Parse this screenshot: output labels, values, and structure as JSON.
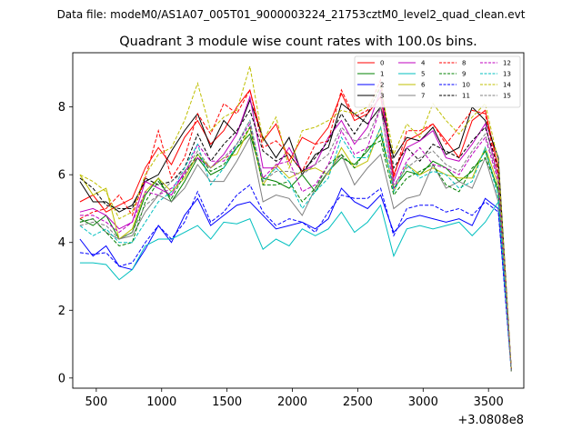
{
  "header": {
    "suptitle": "Data file: modeM0/AS1A07_005T01_9000003224_21753cztM0_level2_quad_clean.evt",
    "title": "Quadrant 3 module wise count rates with 100.0s bins."
  },
  "chart_data": {
    "type": "line",
    "title": "Quadrant 3 module wise count rates with 100.0s bins.",
    "xlabel": "",
    "ylabel": "",
    "x_offset_label": "+3.0808e8",
    "xlim": [
      320,
      3770
    ],
    "ylim": [
      -0.3,
      9.6
    ],
    "xticks": [
      500,
      1000,
      1500,
      2000,
      2500,
      3000,
      3500
    ],
    "yticks": [
      0,
      2,
      4,
      6,
      8
    ],
    "grid": false,
    "legend_position": "top-right",
    "x": [
      375,
      475,
      575,
      675,
      775,
      875,
      975,
      1075,
      1175,
      1275,
      1375,
      1475,
      1575,
      1675,
      1775,
      1875,
      1975,
      2075,
      2175,
      2275,
      2375,
      2475,
      2575,
      2675,
      2775,
      2875,
      2975,
      3075,
      3175,
      3275,
      3375,
      3475,
      3575,
      3675
    ],
    "series": [
      {
        "name": "0",
        "color": "#ff0000",
        "dash": "solid",
        "values": [
          5.2,
          5.4,
          4.9,
          5.1,
          5.3,
          6.2,
          6.8,
          6.3,
          7.1,
          7.6,
          6.9,
          7.3,
          8.0,
          8.5,
          7.0,
          7.5,
          6.4,
          7.1,
          6.9,
          7.4,
          8.4,
          7.6,
          7.8,
          8.3,
          6.0,
          7.0,
          7.2,
          7.5,
          7.0,
          6.5,
          7.6,
          7.9,
          6.2,
          0.2
        ]
      },
      {
        "name": "1",
        "color": "#008000",
        "dash": "solid",
        "values": [
          4.7,
          4.5,
          4.8,
          4.1,
          4.3,
          5.4,
          5.9,
          5.2,
          5.8,
          6.5,
          6.0,
          6.2,
          6.8,
          7.2,
          5.9,
          5.8,
          5.6,
          6.0,
          5.5,
          6.1,
          6.5,
          6.3,
          6.7,
          7.2,
          5.6,
          6.1,
          6.0,
          6.4,
          6.2,
          5.8,
          6.1,
          6.7,
          5.5,
          0.2
        ]
      },
      {
        "name": "2",
        "color": "#0000ff",
        "dash": "solid",
        "values": [
          4.1,
          3.6,
          3.9,
          3.3,
          3.2,
          3.8,
          4.5,
          4.0,
          4.8,
          5.3,
          4.5,
          4.8,
          5.1,
          5.2,
          4.8,
          4.4,
          4.5,
          4.6,
          4.4,
          4.7,
          5.6,
          5.2,
          5.0,
          5.4,
          4.3,
          4.7,
          4.8,
          4.7,
          4.6,
          4.7,
          4.5,
          5.3,
          5.0,
          0.2
        ]
      },
      {
        "name": "3",
        "color": "#000000",
        "dash": "solid",
        "values": [
          5.8,
          5.2,
          5.2,
          4.9,
          5.1,
          5.8,
          6.0,
          6.7,
          7.3,
          7.8,
          6.8,
          7.6,
          7.2,
          8.2,
          7.1,
          6.5,
          7.1,
          6.0,
          6.6,
          6.8,
          8.1,
          7.8,
          7.5,
          8.0,
          6.5,
          7.1,
          7.0,
          7.4,
          6.6,
          6.8,
          8.0,
          7.6,
          6.5,
          0.2
        ]
      },
      {
        "name": "4",
        "color": "#bf00bf",
        "dash": "solid",
        "values": [
          4.9,
          5.0,
          4.8,
          4.4,
          4.6,
          5.8,
          5.6,
          5.4,
          6.1,
          6.5,
          6.2,
          6.6,
          7.2,
          8.3,
          6.2,
          6.2,
          6.8,
          6.1,
          6.3,
          7.1,
          7.6,
          6.9,
          7.4,
          8.5,
          5.8,
          6.8,
          7.0,
          7.3,
          6.5,
          6.4,
          6.9,
          7.5,
          5.9,
          0.2
        ]
      },
      {
        "name": "5",
        "color": "#00bfbf",
        "dash": "solid",
        "values": [
          3.4,
          3.4,
          3.35,
          2.9,
          3.2,
          3.9,
          4.1,
          4.1,
          4.3,
          4.5,
          4.1,
          4.6,
          4.55,
          4.7,
          3.8,
          4.1,
          3.9,
          4.4,
          4.2,
          4.4,
          4.9,
          4.3,
          4.6,
          5.1,
          3.6,
          4.4,
          4.5,
          4.4,
          4.5,
          4.6,
          4.2,
          4.6,
          5.2,
          0.2
        ]
      },
      {
        "name": "6",
        "color": "#bfbf00",
        "dash": "solid",
        "values": [
          6.0,
          5.4,
          5.6,
          4.1,
          4.4,
          5.5,
          5.9,
          5.5,
          5.9,
          6.6,
          6.2,
          6.5,
          6.6,
          7.4,
          5.7,
          6.3,
          5.9,
          6.1,
          6.2,
          6.0,
          6.8,
          6.2,
          6.4,
          7.4,
          5.5,
          6.3,
          6.0,
          6.2,
          6.0,
          5.9,
          5.9,
          6.8,
          5.7,
          0.2
        ]
      },
      {
        "name": "7",
        "color": "#808080",
        "dash": "solid",
        "values": [
          4.6,
          4.7,
          4.3,
          4.1,
          4.2,
          4.9,
          5.4,
          5.2,
          5.6,
          6.3,
          5.8,
          5.8,
          6.4,
          7.1,
          5.2,
          5.4,
          5.3,
          4.8,
          5.6,
          6.1,
          6.6,
          5.7,
          6.2,
          6.6,
          5.0,
          5.3,
          5.4,
          6.3,
          5.6,
          5.8,
          5.6,
          6.5,
          5.2,
          0.2
        ]
      },
      {
        "name": "8",
        "color": "#ff0000",
        "dash": "dashed",
        "values": [
          4.7,
          4.9,
          5.0,
          5.4,
          4.8,
          5.9,
          7.3,
          5.9,
          6.5,
          7.8,
          7.2,
          8.1,
          7.8,
          8.5,
          6.8,
          7.0,
          6.6,
          6.1,
          6.9,
          7.0,
          8.5,
          7.7,
          7.9,
          8.8,
          5.9,
          7.3,
          7.3,
          7.5,
          6.9,
          7.4,
          7.9,
          7.8,
          6.0,
          0.2
        ]
      },
      {
        "name": "9",
        "color": "#008000",
        "dash": "dashed",
        "values": [
          4.6,
          4.7,
          4.3,
          3.9,
          4.0,
          5.2,
          5.8,
          5.3,
          6.0,
          6.6,
          6.1,
          6.3,
          6.8,
          7.4,
          5.7,
          5.7,
          5.8,
          5.2,
          5.6,
          6.3,
          6.6,
          6.2,
          6.8,
          7.0,
          5.4,
          5.9,
          6.1,
          6.3,
          5.7,
          5.5,
          6.2,
          6.5,
          5.6,
          0.2
        ]
      },
      {
        "name": "10",
        "color": "#0000ff",
        "dash": "dashed",
        "values": [
          3.7,
          3.65,
          3.7,
          3.3,
          3.4,
          4.0,
          4.5,
          4.1,
          4.6,
          5.5,
          4.6,
          4.9,
          5.4,
          5.7,
          4.9,
          4.5,
          4.7,
          4.6,
          4.3,
          4.9,
          5.4,
          5.3,
          5.3,
          5.6,
          4.2,
          5.0,
          5.1,
          5.1,
          4.9,
          5.0,
          4.8,
          5.2,
          4.9,
          0.2
        ]
      },
      {
        "name": "11",
        "color": "#000000",
        "dash": "dashed",
        "values": [
          5.9,
          5.6,
          5.1,
          5.0,
          5.0,
          5.9,
          5.7,
          5.8,
          6.2,
          7.2,
          6.4,
          6.9,
          7.3,
          7.9,
          6.7,
          6.4,
          6.6,
          6.1,
          6.5,
          7.0,
          7.8,
          7.2,
          7.8,
          8.6,
          6.2,
          6.8,
          6.4,
          6.9,
          6.7,
          6.5,
          7.0,
          7.4,
          6.2,
          0.2
        ]
      },
      {
        "name": "12",
        "color": "#bf00bf",
        "dash": "dashed",
        "values": [
          4.8,
          4.8,
          4.6,
          4.3,
          4.6,
          5.5,
          5.4,
          5.6,
          6.0,
          6.9,
          6.4,
          6.4,
          6.9,
          7.5,
          5.9,
          6.3,
          6.4,
          5.5,
          5.7,
          6.3,
          7.3,
          6.6,
          6.8,
          8.0,
          5.6,
          6.4,
          6.8,
          6.3,
          6.2,
          6.0,
          6.6,
          7.1,
          5.8,
          0.2
        ]
      },
      {
        "name": "13",
        "color": "#00bfbf",
        "dash": "dashed",
        "values": [
          4.5,
          4.2,
          4.4,
          4.0,
          4.0,
          4.6,
          5.2,
          5.5,
          6.2,
          6.9,
          5.7,
          6.2,
          6.9,
          7.6,
          5.8,
          6.2,
          5.8,
          5.0,
          5.5,
          5.9,
          7.1,
          6.5,
          6.5,
          7.4,
          5.5,
          6.3,
          5.9,
          6.1,
          6.0,
          5.6,
          5.8,
          6.8,
          5.3,
          0.2
        ]
      },
      {
        "name": "14",
        "color": "#bfbf00",
        "dash": "dashed",
        "values": [
          6.0,
          5.8,
          5.5,
          4.7,
          4.9,
          6.0,
          6.6,
          6.8,
          7.6,
          8.7,
          7.3,
          7.7,
          7.9,
          9.2,
          7.0,
          7.7,
          6.2,
          7.3,
          7.4,
          7.6,
          7.9,
          7.8,
          8.0,
          8.6,
          6.6,
          7.5,
          7.1,
          8.1,
          7.6,
          7.2,
          7.7,
          8.1,
          6.4,
          0.2
        ]
      },
      {
        "name": "15",
        "color": "#808080",
        "dash": "dashed",
        "values": [
          4.5,
          4.6,
          4.5,
          4.1,
          4.3,
          5.1,
          5.4,
          5.8,
          6.1,
          6.7,
          6.2,
          6.5,
          6.9,
          7.6,
          5.8,
          6.1,
          6.1,
          6.0,
          6.3,
          6.6,
          7.4,
          7.0,
          7.1,
          8.0,
          5.7,
          6.2,
          6.5,
          6.7,
          6.3,
          6.1,
          6.7,
          7.2,
          5.9,
          0.2
        ]
      }
    ]
  }
}
